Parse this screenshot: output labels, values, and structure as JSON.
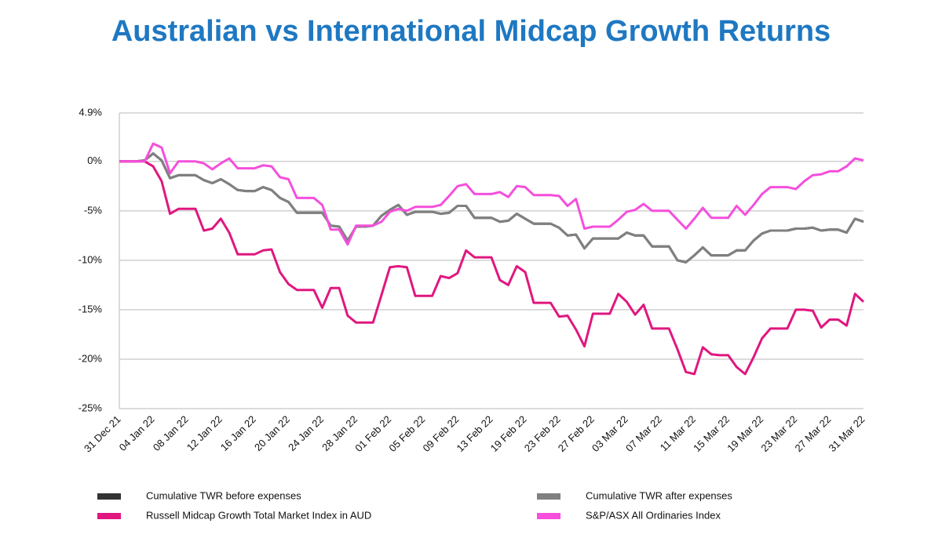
{
  "chart_data": {
    "type": "line",
    "title": "Australian vs International Midcap Growth Returns",
    "categories": [
      "31 Dec 21",
      null,
      null,
      null,
      "04 Jan 22",
      null,
      null,
      null,
      "08 Jan 22",
      null,
      null,
      null,
      "12 Jan 22",
      null,
      null,
      null,
      "16 Jan 22",
      null,
      null,
      null,
      "20 Jan 22",
      null,
      null,
      null,
      "24 Jan 22",
      null,
      null,
      null,
      "28 Jan 22",
      null,
      null,
      null,
      "01 Feb 22",
      null,
      null,
      null,
      "05 Feb 22",
      null,
      null,
      null,
      "09 Feb 22",
      null,
      null,
      null,
      "13 Feb 22",
      null,
      null,
      null,
      "19 Feb 22",
      null,
      null,
      null,
      "23 Feb 22",
      null,
      null,
      null,
      "27 Feb 22",
      null,
      null,
      null,
      "03 Mar 22",
      null,
      null,
      null,
      "07 Mar 22",
      null,
      null,
      null,
      "11 Mar 22",
      null,
      null,
      null,
      "15 Mar 22",
      null,
      null,
      null,
      "19 Mar 22",
      null,
      null,
      null,
      "23 Mar 22",
      null,
      null,
      null,
      "27 Mar 22",
      null,
      null,
      null,
      "31 Mar 22"
    ],
    "series": [
      {
        "name": "Cumulative TWR before expenses",
        "color": "#333333",
        "values": [
          0,
          0,
          0,
          0.1,
          0.8,
          0.1,
          -1.7,
          -1.4,
          -1.4,
          -1.4,
          -1.9,
          -2.2,
          -1.8,
          -2.3,
          -2.9,
          -3,
          -3,
          -2.6,
          -2.9,
          -3.7,
          -4.1,
          -5.2,
          -5.2,
          -5.2,
          -5.2,
          -6.5,
          -6.6,
          -8,
          -6.6,
          -6.6,
          -6.5,
          -5.5,
          -4.9,
          -4.4,
          -5.4,
          -5.1,
          -5.1,
          -5.1,
          -5.3,
          -5.2,
          -4.5,
          -4.5,
          -5.7,
          -5.7,
          -5.7,
          -6.1,
          -6,
          -5.3,
          -5.8,
          -6.3,
          -6.3,
          -6.3,
          -6.7,
          -7.5,
          -7.4,
          -8.8,
          -7.8,
          -7.8,
          -7.8,
          -7.8,
          -7.2,
          -7.5,
          -7.5,
          -8.6,
          -8.6,
          -8.6,
          -10,
          -10.2,
          -9.5,
          -8.7,
          -9.5,
          -9.5,
          -9.5,
          -9,
          -9,
          -8,
          -7.3,
          -7,
          -7,
          -7,
          -6.8,
          -6.8,
          -6.7,
          -7,
          -6.9,
          -6.9,
          -7.2,
          -5.8,
          -6.1
        ]
      },
      {
        "name": "Cumulative TWR after expenses",
        "color": "#808080",
        "values": [
          0,
          0,
          0,
          0.1,
          0.8,
          0.1,
          -1.7,
          -1.4,
          -1.4,
          -1.4,
          -1.9,
          -2.2,
          -1.8,
          -2.3,
          -2.9,
          -3,
          -3,
          -2.6,
          -2.9,
          -3.7,
          -4.1,
          -5.2,
          -5.2,
          -5.2,
          -5.2,
          -6.5,
          -6.6,
          -8,
          -6.6,
          -6.6,
          -6.5,
          -5.5,
          -4.9,
          -4.4,
          -5.4,
          -5.1,
          -5.1,
          -5.1,
          -5.3,
          -5.2,
          -4.5,
          -4.5,
          -5.7,
          -5.7,
          -5.7,
          -6.1,
          -6,
          -5.3,
          -5.8,
          -6.3,
          -6.3,
          -6.3,
          -6.7,
          -7.5,
          -7.4,
          -8.8,
          -7.8,
          -7.8,
          -7.8,
          -7.8,
          -7.2,
          -7.5,
          -7.5,
          -8.6,
          -8.6,
          -8.6,
          -10,
          -10.2,
          -9.5,
          -8.7,
          -9.5,
          -9.5,
          -9.5,
          -9,
          -9,
          -8,
          -7.3,
          -7,
          -7,
          -7,
          -6.8,
          -6.8,
          -6.7,
          -7,
          -6.9,
          -6.9,
          -7.2,
          -5.8,
          -6.1
        ]
      },
      {
        "name": "Russell Midcap Growth Total Market Index in AUD",
        "color": "#e0177f",
        "values": [
          0,
          0,
          0,
          0,
          -0.5,
          -2,
          -5.3,
          -4.8,
          -4.8,
          -4.8,
          -7,
          -6.8,
          -5.8,
          -7.2,
          -9.4,
          -9.4,
          -9.4,
          -9,
          -8.9,
          -11.2,
          -12.4,
          -13,
          -13,
          -13,
          -14.8,
          -12.8,
          -12.8,
          -15.6,
          -16.3,
          -16.3,
          -16.3,
          -13.5,
          -10.7,
          -10.6,
          -10.7,
          -13.6,
          -13.6,
          -13.6,
          -11.6,
          -11.8,
          -11.3,
          -9,
          -9.7,
          -9.7,
          -9.7,
          -12,
          -12.5,
          -10.6,
          -11.2,
          -14.3,
          -14.3,
          -14.3,
          -15.7,
          -15.6,
          -17,
          -18.7,
          -15.4,
          -15.4,
          -15.4,
          -13.4,
          -14.2,
          -15.5,
          -14.5,
          -16.9,
          -16.9,
          -16.9,
          -19,
          -21.3,
          -21.5,
          -18.8,
          -19.5,
          -19.6,
          -19.6,
          -20.8,
          -21.5,
          -19.8,
          -17.9,
          -16.9,
          -16.9,
          -16.9,
          -15,
          -15,
          -15.1,
          -16.8,
          -16,
          -16,
          -16.6,
          -13.4,
          -14.2
        ]
      },
      {
        "name": "S&P/ASX All Ordinaries Index",
        "color": "#f54fdc",
        "values": [
          0,
          0,
          0,
          0,
          1.8,
          1.4,
          -1.2,
          0,
          0,
          0,
          -0.2,
          -0.8,
          -0.2,
          0.3,
          -0.7,
          -0.7,
          -0.7,
          -0.4,
          -0.5,
          -1.6,
          -1.8,
          -3.7,
          -3.7,
          -3.7,
          -4.4,
          -6.9,
          -6.9,
          -8.4,
          -6.5,
          -6.5,
          -6.5,
          -6.1,
          -5.1,
          -4.8,
          -5,
          -4.6,
          -4.6,
          -4.6,
          -4.4,
          -3.5,
          -2.5,
          -2.3,
          -3.3,
          -3.3,
          -3.3,
          -3.1,
          -3.6,
          -2.5,
          -2.6,
          -3.4,
          -3.4,
          -3.4,
          -3.5,
          -4.5,
          -3.8,
          -6.8,
          -6.6,
          -6.6,
          -6.6,
          -5.9,
          -5.1,
          -4.9,
          -4.3,
          -5,
          -5,
          -5,
          -5.9,
          -6.8,
          -5.8,
          -4.7,
          -5.7,
          -5.7,
          -5.7,
          -4.5,
          -5.4,
          -4.4,
          -3.3,
          -2.6,
          -2.6,
          -2.6,
          -2.8,
          -2,
          -1.4,
          -1.3,
          -1,
          -1,
          -0.5,
          0.3,
          0.1
        ]
      }
    ],
    "ylim": [
      -25,
      4.9
    ],
    "yticks": [
      {
        "value": -25,
        "label": "-25%"
      },
      {
        "value": -20,
        "label": "-20%"
      },
      {
        "value": -15,
        "label": "-15%"
      },
      {
        "value": -10,
        "label": "-10%"
      },
      {
        "value": -5,
        "label": "-5%"
      },
      {
        "value": 0,
        "label": "0%"
      },
      {
        "value": 4.9,
        "label": "4.9%"
      }
    ],
    "grid": true
  }
}
